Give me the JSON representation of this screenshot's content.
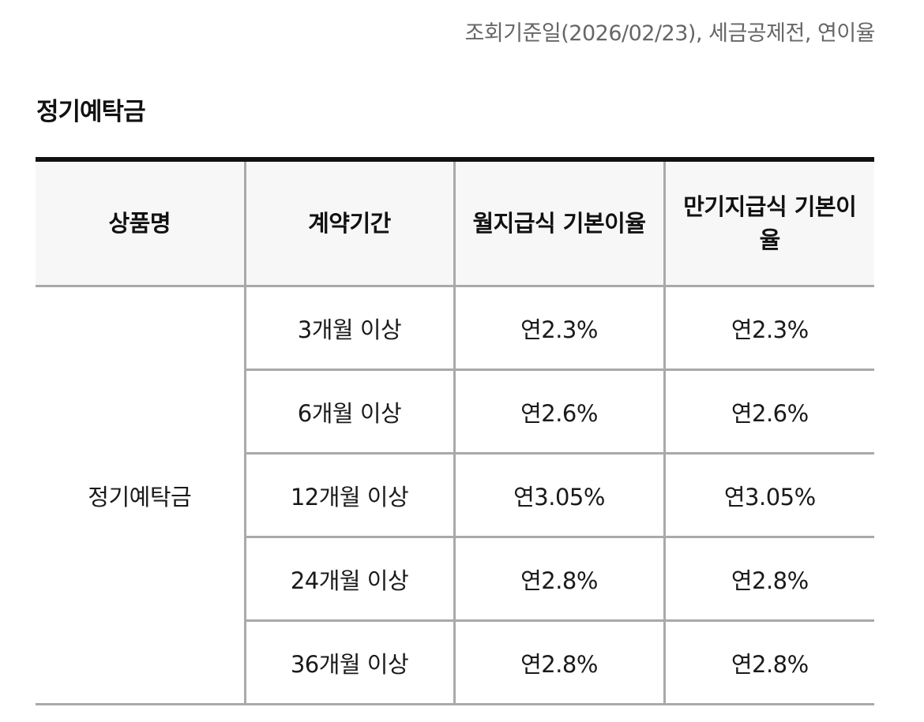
{
  "reference_note": "조회기준일(2026/02/23), 세금공제전, 연이율",
  "section_title": "정기예탁금",
  "table": {
    "headers": [
      "상품명",
      "계약기간",
      "월지급식 기본이율",
      "만기지급식 기본이율"
    ],
    "product_name": "정기예탁금",
    "rows": [
      {
        "term": "3개월 이상",
        "monthly_rate": "연2.3%",
        "maturity_rate": "연2.3%"
      },
      {
        "term": "6개월 이상",
        "monthly_rate": "연2.6%",
        "maturity_rate": "연2.6%"
      },
      {
        "term": "12개월 이상",
        "monthly_rate": "연3.05%",
        "maturity_rate": "연3.05%"
      },
      {
        "term": "24개월 이상",
        "monthly_rate": "연2.8%",
        "maturity_rate": "연2.8%"
      },
      {
        "term": "36개월 이상",
        "monthly_rate": "연2.8%",
        "maturity_rate": "연2.8%"
      }
    ]
  },
  "colors": {
    "top_rule": "#111111",
    "grid_line": "#a9a9a9",
    "header_bg": "#f7f7f7",
    "note_text": "#666666"
  }
}
